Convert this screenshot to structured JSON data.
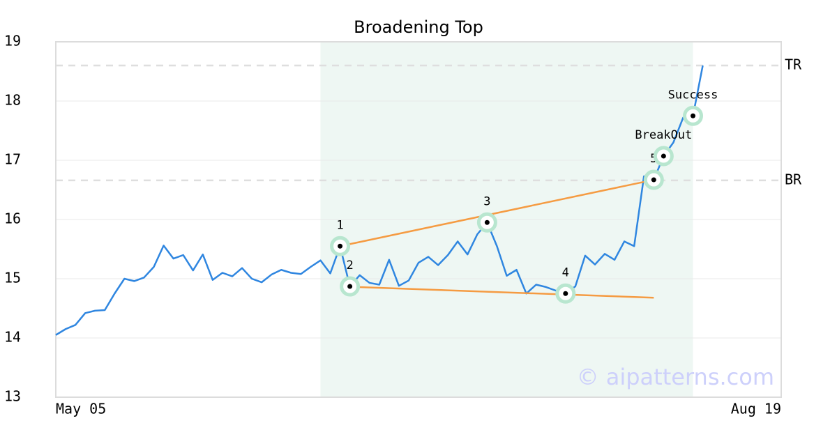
{
  "chart_data": {
    "type": "line",
    "title": "Broadening Top",
    "categories": [
      "May 05",
      null,
      null,
      null,
      null,
      null,
      null,
      null,
      null,
      null,
      null,
      null,
      null,
      null,
      null,
      null,
      null,
      null,
      null,
      null,
      null,
      null,
      null,
      null,
      null,
      null,
      null,
      null,
      null,
      null,
      null,
      null,
      null,
      null,
      null,
      null,
      null,
      null,
      null,
      null,
      null,
      null,
      null,
      null,
      null,
      null,
      null,
      null,
      null,
      null,
      null,
      null,
      null,
      null,
      null,
      null,
      null,
      null,
      null,
      null,
      null,
      null,
      null,
      null,
      null,
      null,
      null,
      null,
      null,
      null,
      null,
      null,
      null,
      null,
      "Aug 19"
    ],
    "values": [
      14.05,
      14.15,
      14.22,
      14.42,
      14.46,
      14.47,
      14.75,
      15.0,
      14.96,
      15.02,
      15.2,
      15.56,
      15.34,
      15.4,
      15.14,
      15.41,
      14.98,
      15.1,
      15.04,
      15.18,
      15.0,
      14.94,
      15.07,
      15.15,
      15.1,
      15.08,
      15.2,
      15.31,
      15.09,
      15.55,
      14.87,
      15.06,
      14.93,
      14.9,
      15.32,
      14.88,
      14.97,
      15.27,
      15.37,
      15.23,
      15.4,
      15.63,
      15.41,
      15.75,
      15.95,
      15.55,
      15.05,
      15.15,
      14.75,
      14.9,
      14.86,
      14.8,
      14.75,
      14.87,
      15.39,
      15.24,
      15.42,
      15.32,
      15.63,
      15.55,
      16.73,
      16.67,
      17.07,
      17.3,
      17.72,
      17.75,
      18.6,
      null,
      null,
      null,
      null,
      null,
      null,
      null,
      null
    ],
    "color": "#2f86e0",
    "ylim": [
      13,
      19
    ],
    "yticks": [
      13,
      14,
      15,
      16,
      17,
      18,
      19
    ],
    "grid": true,
    "shaded_region": {
      "start": 27,
      "end": 65,
      "color": "#eef7f3"
    },
    "levels": [
      {
        "label": "TR",
        "value": 18.6
      },
      {
        "label": "BR",
        "value": 16.66
      }
    ],
    "trendlines": [
      {
        "x": [
          29,
          61
        ],
        "y": [
          15.55,
          16.67
        ],
        "color": "#f59b42"
      },
      {
        "x": [
          29,
          61
        ],
        "y": [
          14.87,
          14.68
        ],
        "color": "#f59b42"
      }
    ],
    "pattern_points": [
      {
        "label": "1",
        "index": 29,
        "value": 15.55
      },
      {
        "label": "2",
        "index": 30,
        "value": 14.87
      },
      {
        "label": "3",
        "index": 44,
        "value": 15.95
      },
      {
        "label": "4",
        "index": 52,
        "value": 14.75
      },
      {
        "label": "5",
        "index": 61,
        "value": 16.67
      },
      {
        "label": "BreakOut",
        "index": 62,
        "value": 17.07
      },
      {
        "label": "Success",
        "index": 65,
        "value": 17.75
      }
    ],
    "watermark": "© aipatterns.com"
  }
}
